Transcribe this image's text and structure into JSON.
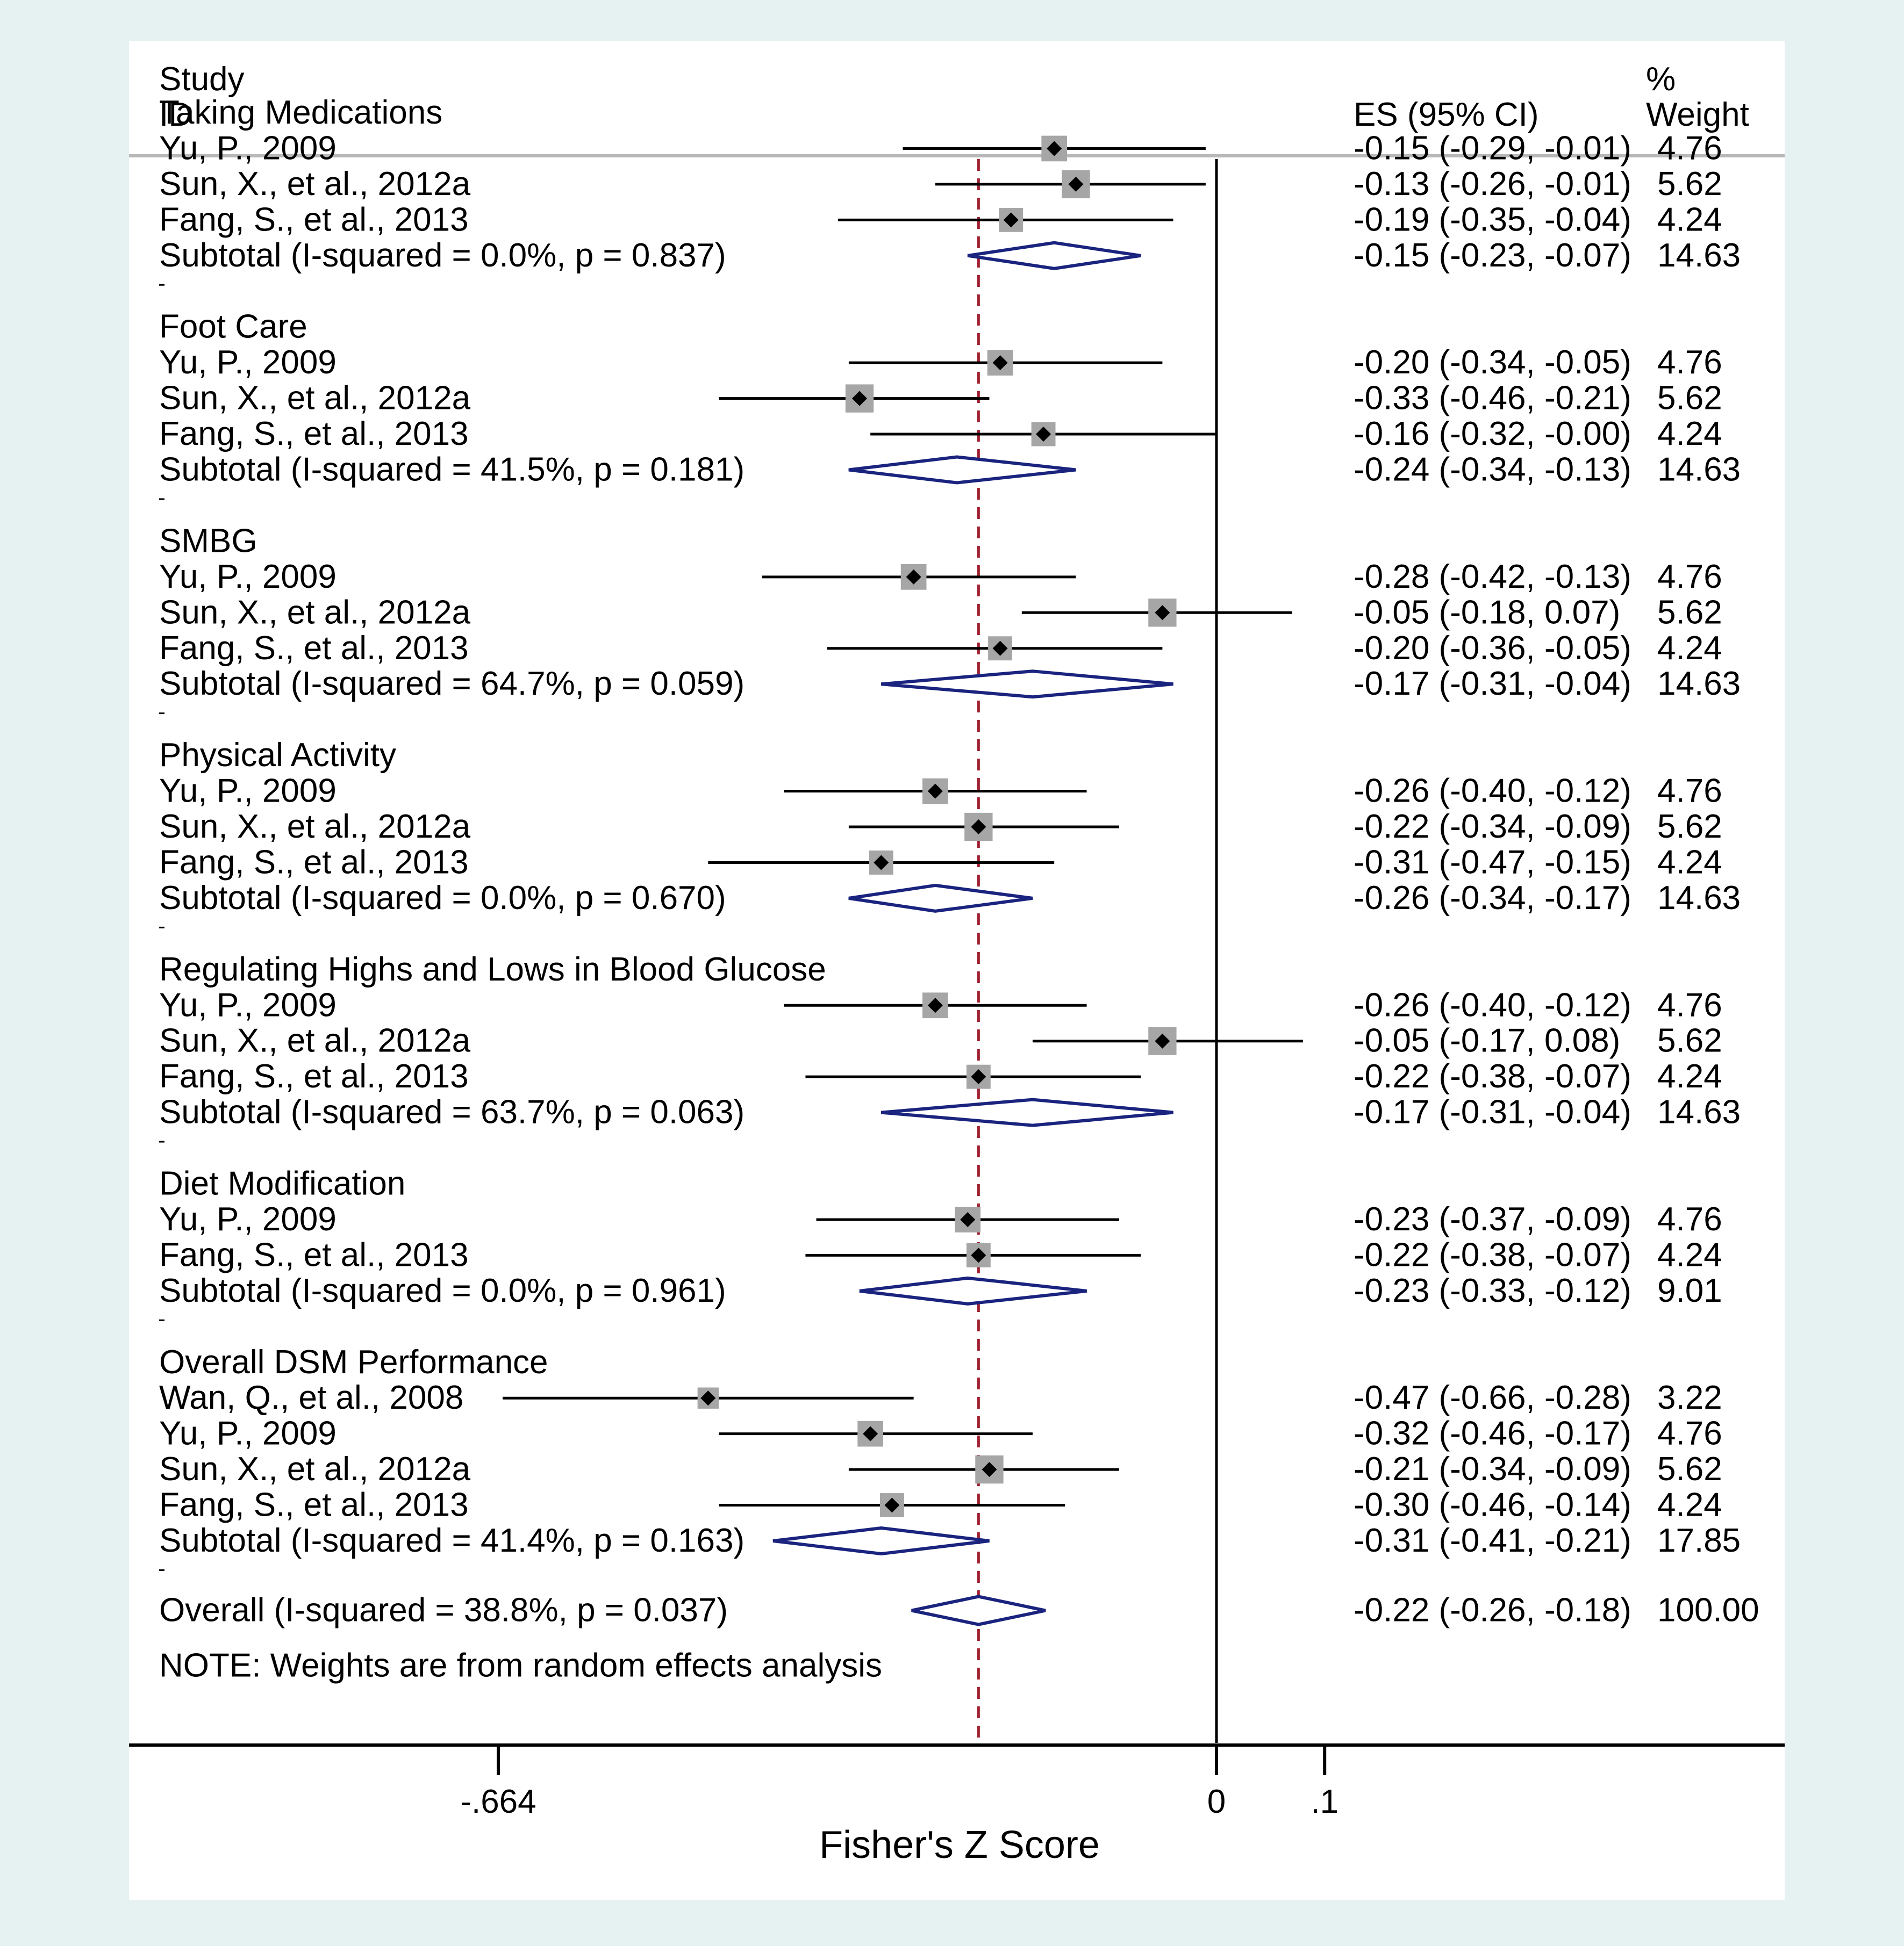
{
  "chart_data": {
    "type": "forest",
    "header": {
      "study_line1": "Study",
      "study_line2": "ID",
      "es_label": "ES (95% CI)",
      "weight_line1": "%",
      "weight_line2": "Weight"
    },
    "xlabel": "Fisher's Z Score",
    "xlim": [
      -0.664,
      0.1
    ],
    "xticks": [
      {
        "value": -0.664,
        "label": "-.664"
      },
      {
        "value": 0,
        "label": "0"
      },
      {
        "value": 0.1,
        "label": ".1"
      }
    ],
    "reference_line": {
      "value": -0.22,
      "color": "#a02030"
    },
    "note": "NOTE: Weights are from random effects analysis",
    "groups": [
      {
        "name": "Taking Medications",
        "studies": [
          {
            "label": "Yu, P., 2009",
            "es": -0.15,
            "lo": -0.29,
            "hi": -0.01,
            "es_ci": "-0.15 (-0.29, -0.01)",
            "weight": "4.76"
          },
          {
            "label": "Sun, X., et al., 2012a",
            "es": -0.13,
            "lo": -0.26,
            "hi": -0.01,
            "es_ci": "-0.13 (-0.26, -0.01)",
            "weight": "5.62"
          },
          {
            "label": "Fang, S., et al., 2013",
            "es": -0.19,
            "lo": -0.35,
            "hi": -0.04,
            "es_ci": "-0.19 (-0.35, -0.04)",
            "weight": "4.24"
          }
        ],
        "subtotal": {
          "label": "Subtotal  (I-squared = 0.0%, p = 0.837)",
          "es": -0.15,
          "lo": -0.23,
          "hi": -0.07,
          "es_ci": "-0.15 (-0.23, -0.07)",
          "weight": "14.63"
        }
      },
      {
        "name": "Foot Care",
        "studies": [
          {
            "label": "Yu, P., 2009",
            "es": -0.2,
            "lo": -0.34,
            "hi": -0.05,
            "es_ci": "-0.20 (-0.34, -0.05)",
            "weight": "4.76"
          },
          {
            "label": "Sun, X., et al., 2012a",
            "es": -0.33,
            "lo": -0.46,
            "hi": -0.21,
            "es_ci": "-0.33 (-0.46, -0.21)",
            "weight": "5.62"
          },
          {
            "label": "Fang, S., et al., 2013",
            "es": -0.16,
            "lo": -0.32,
            "hi": -0.0,
            "es_ci": "-0.16 (-0.32, -0.00)",
            "weight": "4.24"
          }
        ],
        "subtotal": {
          "label": "Subtotal  (I-squared = 41.5%, p = 0.181)",
          "es": -0.24,
          "lo": -0.34,
          "hi": -0.13,
          "es_ci": "-0.24 (-0.34, -0.13)",
          "weight": "14.63"
        }
      },
      {
        "name": "SMBG",
        "studies": [
          {
            "label": "Yu, P., 2009",
            "es": -0.28,
            "lo": -0.42,
            "hi": -0.13,
            "es_ci": "-0.28 (-0.42, -0.13)",
            "weight": "4.76"
          },
          {
            "label": "Sun, X., et al., 2012a",
            "es": -0.05,
            "lo": -0.18,
            "hi": 0.07,
            "es_ci": "-0.05 (-0.18, 0.07)",
            "weight": "5.62"
          },
          {
            "label": "Fang, S., et al., 2013",
            "es": -0.2,
            "lo": -0.36,
            "hi": -0.05,
            "es_ci": "-0.20 (-0.36, -0.05)",
            "weight": "4.24"
          }
        ],
        "subtotal": {
          "label": "Subtotal  (I-squared = 64.7%, p = 0.059)",
          "es": -0.17,
          "lo": -0.31,
          "hi": -0.04,
          "es_ci": "-0.17 (-0.31, -0.04)",
          "weight": "14.63"
        }
      },
      {
        "name": "Physical Activity",
        "studies": [
          {
            "label": "Yu, P., 2009",
            "es": -0.26,
            "lo": -0.4,
            "hi": -0.12,
            "es_ci": "-0.26 (-0.40, -0.12)",
            "weight": "4.76"
          },
          {
            "label": "Sun, X., et al., 2012a",
            "es": -0.22,
            "lo": -0.34,
            "hi": -0.09,
            "es_ci": "-0.22 (-0.34, -0.09)",
            "weight": "5.62"
          },
          {
            "label": "Fang, S., et al., 2013",
            "es": -0.31,
            "lo": -0.47,
            "hi": -0.15,
            "es_ci": "-0.31 (-0.47, -0.15)",
            "weight": "4.24"
          }
        ],
        "subtotal": {
          "label": "Subtotal  (I-squared = 0.0%, p = 0.670)",
          "es": -0.26,
          "lo": -0.34,
          "hi": -0.17,
          "es_ci": "-0.26 (-0.34, -0.17)",
          "weight": "14.63"
        }
      },
      {
        "name": "Regulating Highs and Lows in Blood Glucose",
        "studies": [
          {
            "label": "Yu, P., 2009",
            "es": -0.26,
            "lo": -0.4,
            "hi": -0.12,
            "es_ci": "-0.26 (-0.40, -0.12)",
            "weight": "4.76"
          },
          {
            "label": "Sun, X., et al., 2012a",
            "es": -0.05,
            "lo": -0.17,
            "hi": 0.08,
            "es_ci": "-0.05 (-0.17, 0.08)",
            "weight": "5.62"
          },
          {
            "label": "Fang, S., et al., 2013",
            "es": -0.22,
            "lo": -0.38,
            "hi": -0.07,
            "es_ci": "-0.22 (-0.38, -0.07)",
            "weight": "4.24"
          }
        ],
        "subtotal": {
          "label": "Subtotal  (I-squared = 63.7%, p = 0.063)",
          "es": -0.17,
          "lo": -0.31,
          "hi": -0.04,
          "es_ci": "-0.17 (-0.31, -0.04)",
          "weight": "14.63"
        }
      },
      {
        "name": "Diet Modification",
        "studies": [
          {
            "label": "Yu, P., 2009",
            "es": -0.23,
            "lo": -0.37,
            "hi": -0.09,
            "es_ci": "-0.23 (-0.37, -0.09)",
            "weight": "4.76"
          },
          {
            "label": "Fang, S., et al., 2013",
            "es": -0.22,
            "lo": -0.38,
            "hi": -0.07,
            "es_ci": "-0.22 (-0.38, -0.07)",
            "weight": "4.24"
          }
        ],
        "subtotal": {
          "label": "Subtotal  (I-squared = 0.0%, p = 0.961)",
          "es": -0.23,
          "lo": -0.33,
          "hi": -0.12,
          "es_ci": "-0.23 (-0.33, -0.12)",
          "weight": "9.01"
        }
      },
      {
        "name": "Overall DSM Performance",
        "studies": [
          {
            "label": "Wan, Q., et al., 2008",
            "es": -0.47,
            "lo": -0.66,
            "hi": -0.28,
            "es_ci": "-0.47 (-0.66, -0.28)",
            "weight": "3.22"
          },
          {
            "label": "Yu, P., 2009",
            "es": -0.32,
            "lo": -0.46,
            "hi": -0.17,
            "es_ci": "-0.32 (-0.46, -0.17)",
            "weight": "4.76"
          },
          {
            "label": "Sun, X., et al., 2012a",
            "es": -0.21,
            "lo": -0.34,
            "hi": -0.09,
            "es_ci": "-0.21 (-0.34, -0.09)",
            "weight": "5.62"
          },
          {
            "label": "Fang, S., et al., 2013",
            "es": -0.3,
            "lo": -0.46,
            "hi": -0.14,
            "es_ci": "-0.30 (-0.46, -0.14)",
            "weight": "4.24"
          }
        ],
        "subtotal": {
          "label": "Subtotal  (I-squared = 41.4%, p = 0.163)",
          "es": -0.31,
          "lo": -0.41,
          "hi": -0.21,
          "es_ci": "-0.31 (-0.41, -0.21)",
          "weight": "17.85"
        }
      }
    ],
    "overall": {
      "label": "Overall  (I-squared = 38.8%, p = 0.037)",
      "es": -0.22,
      "lo": -0.26,
      "hi": -0.18,
      "es_ci": "-0.22 (-0.26, -0.18)",
      "weight": "100.00"
    },
    "colors": {
      "background": "#e6f1f2",
      "panel": "#ffffff",
      "diamond": "#1a237e",
      "marker_box": "#a6a6a6",
      "line": "#000000"
    }
  }
}
